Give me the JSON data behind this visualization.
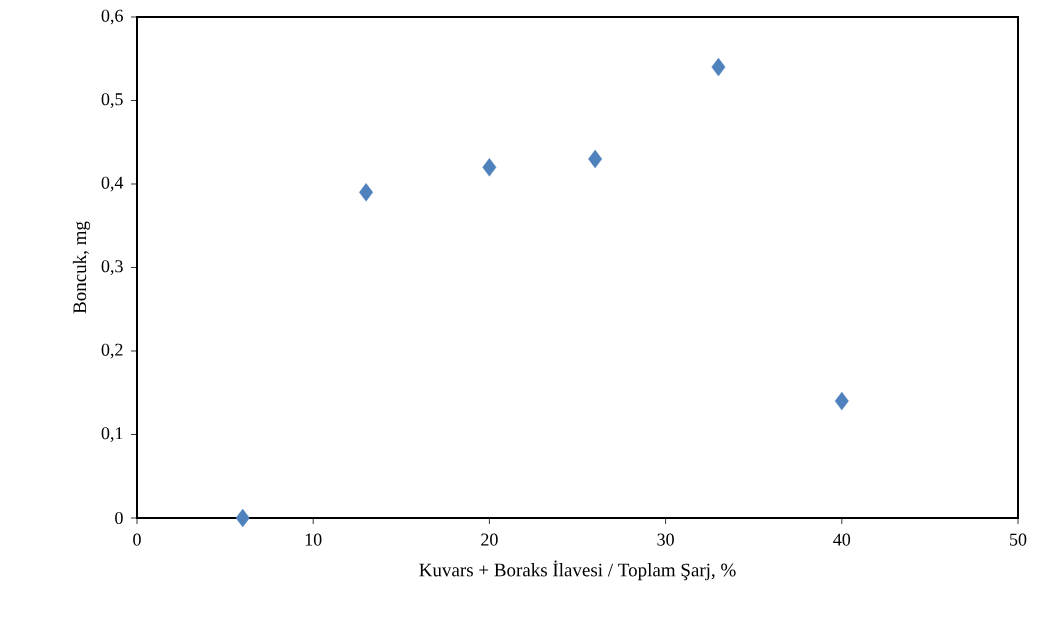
{
  "chart_data": {
    "type": "scatter",
    "xlabel": "Kuvars + Boraks İlavesi / Toplam Şarj, %",
    "ylabel": "Boncuk, mg",
    "x": [
      6,
      13,
      20,
      26,
      33,
      40
    ],
    "values": [
      0,
      0.39,
      0.42,
      0.43,
      0.54,
      0.14
    ],
    "color": "#4f81bd",
    "marker": "diamond",
    "xlim": [
      0,
      50
    ],
    "xticks": [
      0,
      10,
      20,
      30,
      40,
      50
    ],
    "ylim": [
      0,
      0.6
    ],
    "yticks": [
      {
        "value": 0,
        "label": "0"
      },
      {
        "value": 0.1,
        "label": "0,1"
      },
      {
        "value": 0.2,
        "label": "0,2"
      },
      {
        "value": 0.3,
        "label": "0,3"
      },
      {
        "value": 0.4,
        "label": "0,4"
      },
      {
        "value": 0.5,
        "label": "0,5"
      },
      {
        "value": 0.6,
        "label": "0,6"
      }
    ]
  }
}
